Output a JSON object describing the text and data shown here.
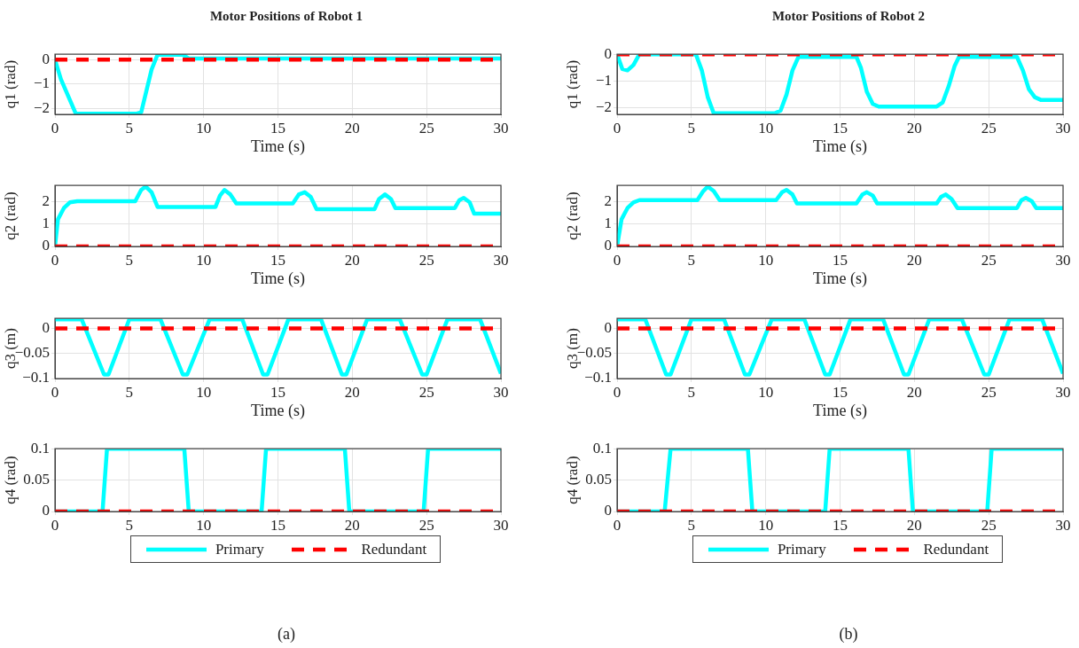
{
  "chart_data": [
    {
      "type": "line",
      "title": "Motor Positions of Robot 1",
      "xlabel": "Time (s)",
      "ylabel": "q1 (rad)",
      "xlim": [
        0,
        30
      ],
      "xticks": [
        0,
        5,
        10,
        15,
        20,
        25,
        30
      ],
      "ylim": [
        -2.23,
        0.22
      ],
      "yticks": [
        -2,
        -1,
        0
      ],
      "grid": true,
      "series": [
        {
          "color": "#00ffff",
          "line_style": "solid",
          "x": [
            0,
            0.4,
            1.4,
            5.5,
            5.8,
            6.5,
            6.9,
            8.6,
            9,
            30
          ],
          "values": [
            0,
            -0.8,
            -2.2,
            -2.2,
            -2.15,
            -0.4,
            0.2,
            0.2,
            0.05,
            0.05
          ]
        },
        {
          "color": "#ff0000",
          "line_style": "dashed",
          "x": [
            0,
            30
          ],
          "values": [
            0,
            0
          ]
        }
      ]
    },
    {
      "type": "line",
      "xlabel": "Time (s)",
      "ylabel": "q2 (rad)",
      "xlim": [
        0,
        30
      ],
      "xticks": [
        0,
        5,
        10,
        15,
        20,
        25,
        30
      ],
      "ylim": [
        0,
        2.7
      ],
      "yticks": [
        0,
        1,
        2
      ],
      "grid": true,
      "series": [
        {
          "color": "#00ffff",
          "line_style": "solid",
          "x": [
            0,
            0.2,
            0.6,
            1,
            1.5,
            5.4,
            5.8,
            6.1,
            6.5,
            6.9,
            10.8,
            11.1,
            11.4,
            11.8,
            12.2,
            16,
            16.4,
            16.8,
            17.2,
            17.6,
            21.5,
            21.8,
            22.2,
            22.6,
            22.9,
            26.9,
            27.2,
            27.5,
            27.9,
            28.2,
            30
          ],
          "values": [
            0,
            1.2,
            1.7,
            1.95,
            2,
            2,
            2.5,
            2.65,
            2.4,
            1.75,
            1.75,
            2.25,
            2.5,
            2.3,
            1.9,
            1.9,
            2.3,
            2.4,
            2.2,
            1.65,
            1.65,
            2.1,
            2.3,
            2.1,
            1.7,
            1.7,
            2.05,
            2.15,
            1.95,
            1.45,
            1.45
          ]
        },
        {
          "color": "#ff0000",
          "line_style": "dashed",
          "x": [
            0,
            30
          ],
          "values": [
            0,
            0
          ]
        }
      ]
    },
    {
      "type": "line",
      "xlabel": "Time (s)",
      "ylabel": "q3 (m)",
      "xlim": [
        0,
        30
      ],
      "xticks": [
        0,
        5,
        10,
        15,
        20,
        25,
        30
      ],
      "ylim": [
        -0.1,
        0.02
      ],
      "yticks": [
        -0.1,
        -0.05,
        0
      ],
      "grid": true,
      "series": [
        {
          "color": "#00ffff",
          "line_style": "solid",
          "x": [
            0,
            1.8,
            3.3,
            3.6,
            5,
            7.1,
            8.6,
            8.9,
            10.4,
            12.6,
            14,
            14.3,
            15.7,
            17.9,
            19.3,
            19.6,
            21,
            23.2,
            24.7,
            25,
            26.4,
            28.6,
            30
          ],
          "values": [
            0.018,
            0.018,
            -0.092,
            -0.092,
            0.018,
            0.018,
            -0.092,
            -0.092,
            0.018,
            0.018,
            -0.092,
            -0.092,
            0.018,
            0.018,
            -0.092,
            -0.092,
            0.018,
            0.018,
            -0.092,
            -0.092,
            0.018,
            0.018,
            -0.09
          ]
        },
        {
          "color": "#ff0000",
          "line_style": "dashed",
          "x": [
            0,
            30
          ],
          "values": [
            0,
            0
          ]
        }
      ]
    },
    {
      "type": "line",
      "ylabel": "q4 (rad)",
      "xlim": [
        0,
        30
      ],
      "xticks": [
        0,
        5,
        10,
        15,
        20,
        25,
        30
      ],
      "ylim": [
        0,
        0.1
      ],
      "yticks": [
        0,
        0.05,
        0.1
      ],
      "grid": true,
      "legend": "bottom",
      "annotations": [
        "(a)"
      ],
      "series": [
        {
          "name": "Primary",
          "color": "#00ffff",
          "line_style": "solid",
          "x": [
            0,
            3.2,
            3.5,
            8.7,
            9,
            13.9,
            14.2,
            19.5,
            19.8,
            24.8,
            25.1,
            30
          ],
          "values": [
            0,
            0,
            0.1,
            0.1,
            0,
            0,
            0.1,
            0.1,
            0,
            0,
            0.1,
            0.1
          ]
        },
        {
          "name": "Redundant",
          "color": "#ff0000",
          "line_style": "dashed",
          "x": [
            0,
            30
          ],
          "values": [
            0,
            0
          ]
        }
      ]
    },
    {
      "type": "line",
      "title": "Motor Positions of Robot 2",
      "xlabel": "Time (s)",
      "ylabel": "q1 (rad)",
      "xlim": [
        0,
        30
      ],
      "xticks": [
        0,
        5,
        10,
        15,
        20,
        25,
        30
      ],
      "ylim": [
        -2.24,
        0
      ],
      "yticks": [
        -2,
        -1,
        0
      ],
      "grid": true,
      "series": [
        {
          "color": "#00ffff",
          "line_style": "solid",
          "x": [
            0,
            0.35,
            0.7,
            1.1,
            1.5,
            5.3,
            5.7,
            6.1,
            6.5,
            10.6,
            11,
            11.4,
            11.8,
            12.2,
            16.1,
            16.4,
            16.8,
            17.2,
            17.6,
            21.5,
            21.9,
            22.3,
            22.7,
            23,
            26.9,
            27.3,
            27.7,
            28.1,
            28.5,
            30
          ],
          "values": [
            0,
            -0.55,
            -0.6,
            -0.4,
            0,
            0,
            -0.6,
            -1.6,
            -2.2,
            -2.2,
            -2.1,
            -1.5,
            -0.6,
            -0.1,
            -0.1,
            -0.5,
            -1.4,
            -1.85,
            -1.95,
            -1.95,
            -1.8,
            -1.2,
            -0.45,
            -0.1,
            -0.1,
            -0.6,
            -1.3,
            -1.6,
            -1.7,
            -1.7
          ]
        },
        {
          "color": "#ff0000",
          "line_style": "dashed",
          "x": [
            0,
            30
          ],
          "values": [
            0,
            0
          ]
        }
      ]
    },
    {
      "type": "line",
      "xlabel": "Time (s)",
      "ylabel": "q2 (rad)",
      "xlim": [
        0,
        30
      ],
      "xticks": [
        0,
        5,
        10,
        15,
        20,
        25,
        30
      ],
      "ylim": [
        0,
        2.7
      ],
      "yticks": [
        0,
        1,
        2
      ],
      "grid": true,
      "series": [
        {
          "color": "#00ffff",
          "line_style": "solid",
          "x": [
            0,
            0.3,
            0.7,
            1.1,
            1.5,
            5.4,
            5.8,
            6.1,
            6.5,
            6.9,
            10.7,
            11.1,
            11.4,
            11.8,
            12.1,
            16.1,
            16.5,
            16.8,
            17.2,
            17.5,
            21.5,
            21.8,
            22.1,
            22.5,
            22.9,
            26.9,
            27.2,
            27.5,
            27.9,
            28.2,
            30
          ],
          "values": [
            0,
            1.2,
            1.7,
            1.95,
            2.05,
            2.05,
            2.45,
            2.65,
            2.45,
            2.05,
            2.05,
            2.4,
            2.5,
            2.3,
            1.9,
            1.9,
            2.3,
            2.4,
            2.25,
            1.9,
            1.9,
            2.2,
            2.3,
            2.1,
            1.7,
            1.7,
            2.05,
            2.15,
            2,
            1.7,
            1.7
          ]
        },
        {
          "color": "#ff0000",
          "line_style": "dashed",
          "x": [
            0,
            30
          ],
          "values": [
            0,
            0
          ]
        }
      ]
    },
    {
      "type": "line",
      "xlabel": "Time (s)",
      "ylabel": "q3 (m)",
      "xlim": [
        0,
        30
      ],
      "xticks": [
        0,
        5,
        10,
        15,
        20,
        25,
        30
      ],
      "ylim": [
        -0.1,
        0.02
      ],
      "yticks": [
        -0.1,
        -0.05,
        0
      ],
      "grid": true,
      "series": [
        {
          "color": "#00ffff",
          "line_style": "solid",
          "x": [
            0,
            1.9,
            3.3,
            3.6,
            5,
            7.2,
            8.6,
            8.9,
            10.4,
            12.6,
            14,
            14.3,
            15.7,
            17.9,
            19.3,
            19.6,
            21,
            23.2,
            24.7,
            25,
            26.4,
            28.6,
            30
          ],
          "values": [
            0.018,
            0.018,
            -0.092,
            -0.092,
            0.018,
            0.018,
            -0.092,
            -0.092,
            0.018,
            0.018,
            -0.092,
            -0.092,
            0.018,
            0.018,
            -0.092,
            -0.092,
            0.018,
            0.018,
            -0.092,
            -0.092,
            0.018,
            0.018,
            -0.09
          ]
        },
        {
          "color": "#ff0000",
          "line_style": "dashed",
          "x": [
            0,
            30
          ],
          "values": [
            0,
            0
          ]
        }
      ]
    },
    {
      "type": "line",
      "ylabel": "q4 (rad)",
      "xlim": [
        0,
        30
      ],
      "xticks": [
        0,
        5,
        10,
        15,
        20,
        25,
        30
      ],
      "ylim": [
        0,
        0.1
      ],
      "yticks": [
        0,
        0.05,
        0.1
      ],
      "grid": true,
      "legend": "bottom",
      "annotations": [
        "(b)"
      ],
      "series": [
        {
          "name": "Primary",
          "color": "#00ffff",
          "line_style": "solid",
          "x": [
            0,
            3.2,
            3.6,
            8.8,
            9.1,
            14,
            14.3,
            19.6,
            19.9,
            24.9,
            25.2,
            30
          ],
          "values": [
            0,
            0,
            0.1,
            0.1,
            0,
            0,
            0.1,
            0.1,
            0,
            0,
            0.1,
            0.1
          ]
        },
        {
          "name": "Redundant",
          "color": "#ff0000",
          "line_style": "dashed",
          "x": [
            0,
            30
          ],
          "values": [
            0,
            0
          ]
        }
      ]
    }
  ]
}
